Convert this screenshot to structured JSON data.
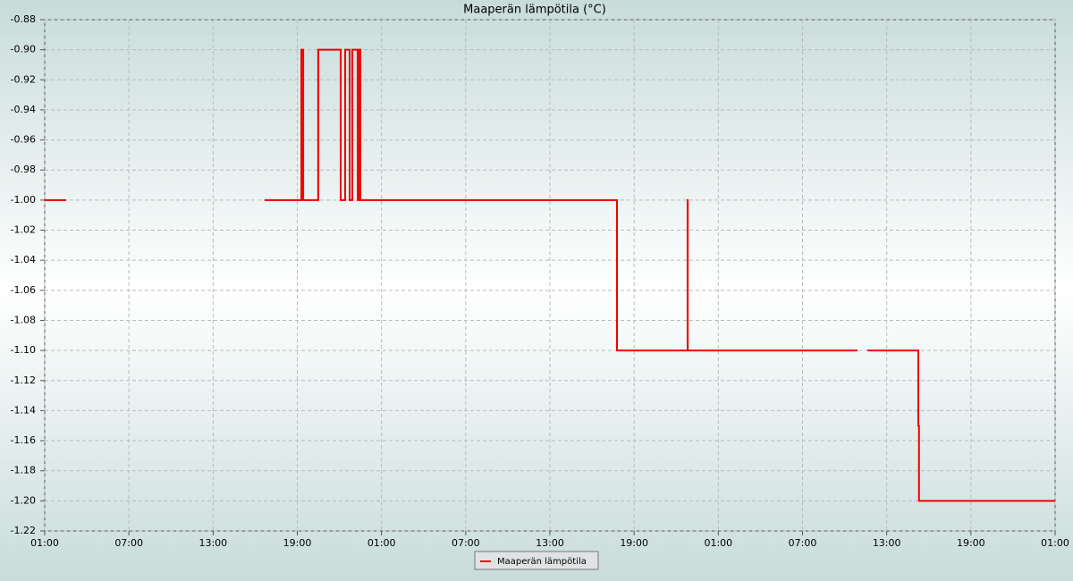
{
  "chart_data": {
    "type": "line",
    "title": "Maaperän lämpötila (°C)",
    "x": [
      0,
      1.53,
      8,
      15.67,
      18.29,
      18.29,
      18.42,
      18.42,
      19.49,
      19.49,
      21.09,
      21.09,
      21.41,
      21.41,
      21.73,
      21.73,
      21.92,
      21.92,
      22.3,
      22.3,
      22.36,
      22.36,
      22.49,
      22.49,
      40.78,
      40.78,
      45.81,
      45.81,
      45.82,
      45.82,
      57.92,
      58.2,
      58.62,
      62.25,
      62.25,
      62.3,
      62.3,
      72
    ],
    "series": [
      {
        "name": "Maaperän lämpötila",
        "color": "#ee0000",
        "values": [
          -1.0,
          -1.0,
          null,
          -1.0,
          -1.0,
          -0.9,
          -0.9,
          -1.0,
          -1.0,
          -0.9,
          -0.9,
          -1.0,
          -1.0,
          -0.9,
          -0.9,
          -1.0,
          -1.0,
          -0.9,
          -0.9,
          -1.0,
          -1.0,
          -0.9,
          -0.9,
          -1.0,
          -1.0,
          -1.1,
          -1.1,
          -1.0,
          -1.0,
          -1.1,
          -1.1,
          null,
          -1.1,
          -1.1,
          -1.15,
          -1.15,
          -1.2,
          -1.2
        ]
      }
    ],
    "xlim": [
      0,
      72
    ],
    "xticks": [
      {
        "value": 0,
        "label": "01:00"
      },
      {
        "value": 6,
        "label": "07:00"
      },
      {
        "value": 12,
        "label": "13:00"
      },
      {
        "value": 18,
        "label": "19:00"
      },
      {
        "value": 24,
        "label": "01:00"
      },
      {
        "value": 30,
        "label": "07:00"
      },
      {
        "value": 36,
        "label": "13:00"
      },
      {
        "value": 42,
        "label": "19:00"
      },
      {
        "value": 48,
        "label": "01:00"
      },
      {
        "value": 54,
        "label": "07:00"
      },
      {
        "value": 60,
        "label": "13:00"
      },
      {
        "value": 66,
        "label": "19:00"
      },
      {
        "value": 72,
        "label": "01:00"
      }
    ],
    "ylim": [
      -1.22,
      -0.88
    ],
    "yticks": [
      -1.22,
      {
        "value": -1.2,
        "label": "-1.20"
      },
      -1.18,
      -1.16,
      -1.14,
      -1.12,
      {
        "value": -1.1,
        "label": "-1.10"
      },
      -1.08,
      -1.06,
      -1.04,
      -1.02,
      {
        "value": -1.0,
        "label": "-1.00"
      },
      -0.98,
      -0.96,
      -0.94,
      -0.92,
      {
        "value": -0.9,
        "label": "-0.90"
      },
      -0.88
    ],
    "grid": true,
    "legend": "bottom"
  }
}
